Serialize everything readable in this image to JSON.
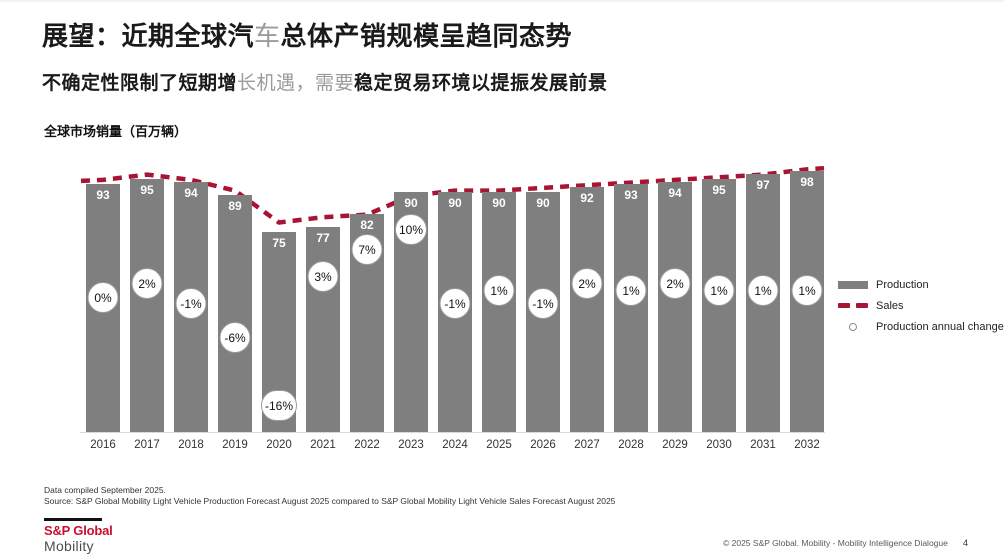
{
  "slide": {
    "title_segments": [
      {
        "text": "展望：近期全球汽"
      },
      {
        "text": "车"
      },
      {
        "text": "总体产销规模呈趋同态势"
      }
    ],
    "subtitle_segments": [
      {
        "text": "不确定性限制了短期增"
      },
      {
        "text": "长机遇，需要"
      },
      {
        "text": "稳定贸易环境以提振发展前景"
      }
    ],
    "chart_heading": "全球市场销量（百万辆）",
    "footnote_line1": "Data compiled September 2025.",
    "footnote_line2": "Source: S&P Global Mobility Light Vehicle Production Forecast August 2025 compared to S&P Global Mobility Light Vehicle Sales Forecast August 2025",
    "logo": {
      "brand": "S&P Global",
      "division": "Mobility"
    },
    "footer_right": "© 2025 S&P Global. Mobility - Mobility Intelligence Dialogue",
    "page_number": "4"
  },
  "legend": {
    "production_label": "Production",
    "sales_label": "Sales",
    "annual_change_label": "Production annual change"
  },
  "colors": {
    "bar_gray": "#7f7f7f",
    "sales_red": "#a81435",
    "logo_red": "#c8102e",
    "bubble_border": "#9a9a9a",
    "text_dark": "#1a1a1a"
  },
  "chart_data": {
    "type": "bar",
    "title": "全球市场销量（百万辆）",
    "xlabel": "",
    "ylabel": "百万辆 (millions of units)",
    "ylim": [
      0,
      103
    ],
    "grid": false,
    "legend_position": "right",
    "categories": [
      "2016",
      "2017",
      "2018",
      "2019",
      "2020",
      "2021",
      "2022",
      "2023",
      "2024",
      "2025",
      "2026",
      "2027",
      "2028",
      "2029",
      "2030",
      "2031",
      "2032"
    ],
    "series": [
      {
        "name": "Production",
        "type": "bar",
        "values": [
          93,
          95,
          94,
          89,
          75,
          77,
          82,
          90,
          90,
          90,
          90,
          92,
          93,
          94,
          95,
          97,
          98
        ]
      },
      {
        "name": "Sales",
        "type": "line-dashed",
        "values_estimated": [
          95,
          97,
          95,
          91,
          79,
          81,
          82,
          89,
          91,
          91,
          92,
          93,
          94,
          95,
          96,
          97,
          99
        ]
      },
      {
        "name": "Production annual change",
        "type": "point-label",
        "labels": [
          "0%",
          "2%",
          "-1%",
          "-6%",
          "-16%",
          "3%",
          "7%",
          "10%",
          "-1%",
          "1%",
          "-1%",
          "2%",
          "1%",
          "2%",
          "1%",
          "1%",
          "1%"
        ],
        "values_pct": [
          0,
          2,
          -1,
          -6,
          -16,
          3,
          7,
          10,
          -1,
          1,
          -1,
          2,
          1,
          2,
          1,
          1,
          1
        ]
      }
    ]
  }
}
